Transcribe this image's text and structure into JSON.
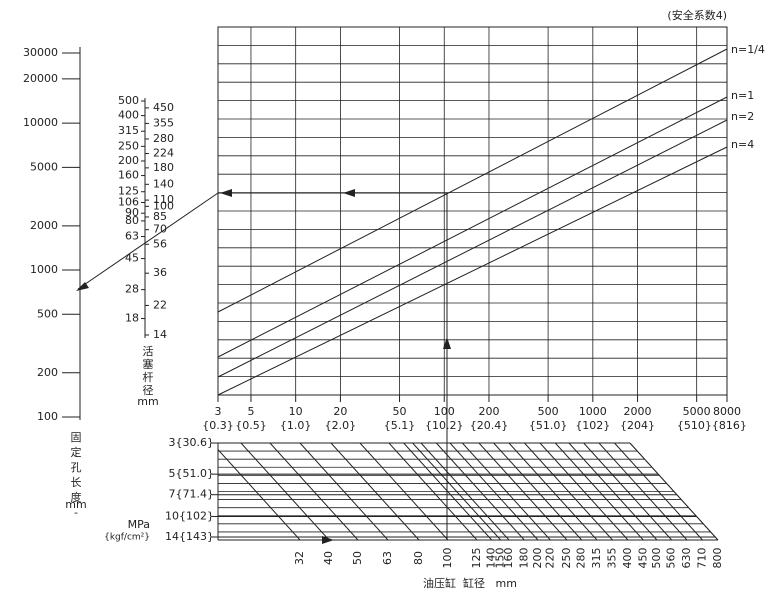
{
  "note": "(安全系数4)",
  "curves": [
    "n=1/4",
    "n=1",
    "n=2",
    "n=4"
  ],
  "length_scale": {
    "ticks": [
      30000,
      20000,
      10000,
      5000,
      2000,
      1000,
      500,
      200,
      100
    ],
    "title": [
      "固",
      "定",
      "孔",
      "长",
      "度",
      "-"
    ],
    "unit": "mm"
  },
  "rod_scale": {
    "left_ticks": [
      500,
      400,
      315,
      250,
      200,
      160,
      125,
      106,
      90,
      80,
      63,
      45,
      28,
      18
    ],
    "right_ticks": [
      450,
      355,
      280,
      224,
      180,
      140,
      110,
      100,
      85,
      70,
      56,
      36,
      22,
      14
    ],
    "title": [
      "活",
      "塞",
      "杆",
      "径"
    ],
    "unit": "mm"
  },
  "load_axis": {
    "ticks": [
      3,
      5,
      10,
      20,
      50,
      100,
      200,
      500,
      1000,
      2000,
      5000,
      8000
    ],
    "kgf_labels": [
      "{0.3}",
      "{0.5}",
      "{1.0}",
      "{2.0}",
      "{5.1}",
      "{10.2}",
      "{20.4}",
      "{51.0}",
      "{102}",
      "{204}",
      "{510}{816}"
    ]
  },
  "pressure": {
    "unit": "MPa",
    "unit2": "{kgf/cm²}",
    "ticks": [
      {
        "value": 3,
        "label": "3{30.6}"
      },
      {
        "value": 5,
        "label": "5{51.0}"
      },
      {
        "value": 7,
        "label": "7{71.4}"
      },
      {
        "value": 10,
        "label": "10{102}"
      },
      {
        "value": 14,
        "label": "14{143}"
      }
    ]
  },
  "bore": {
    "ticks": [
      32,
      40,
      50,
      63,
      80,
      100,
      125,
      140,
      150,
      160,
      180,
      200,
      220,
      250,
      280,
      315,
      355,
      400,
      450,
      500,
      560,
      630,
      710,
      800
    ],
    "title": "油压缸  缸径   mm"
  }
}
